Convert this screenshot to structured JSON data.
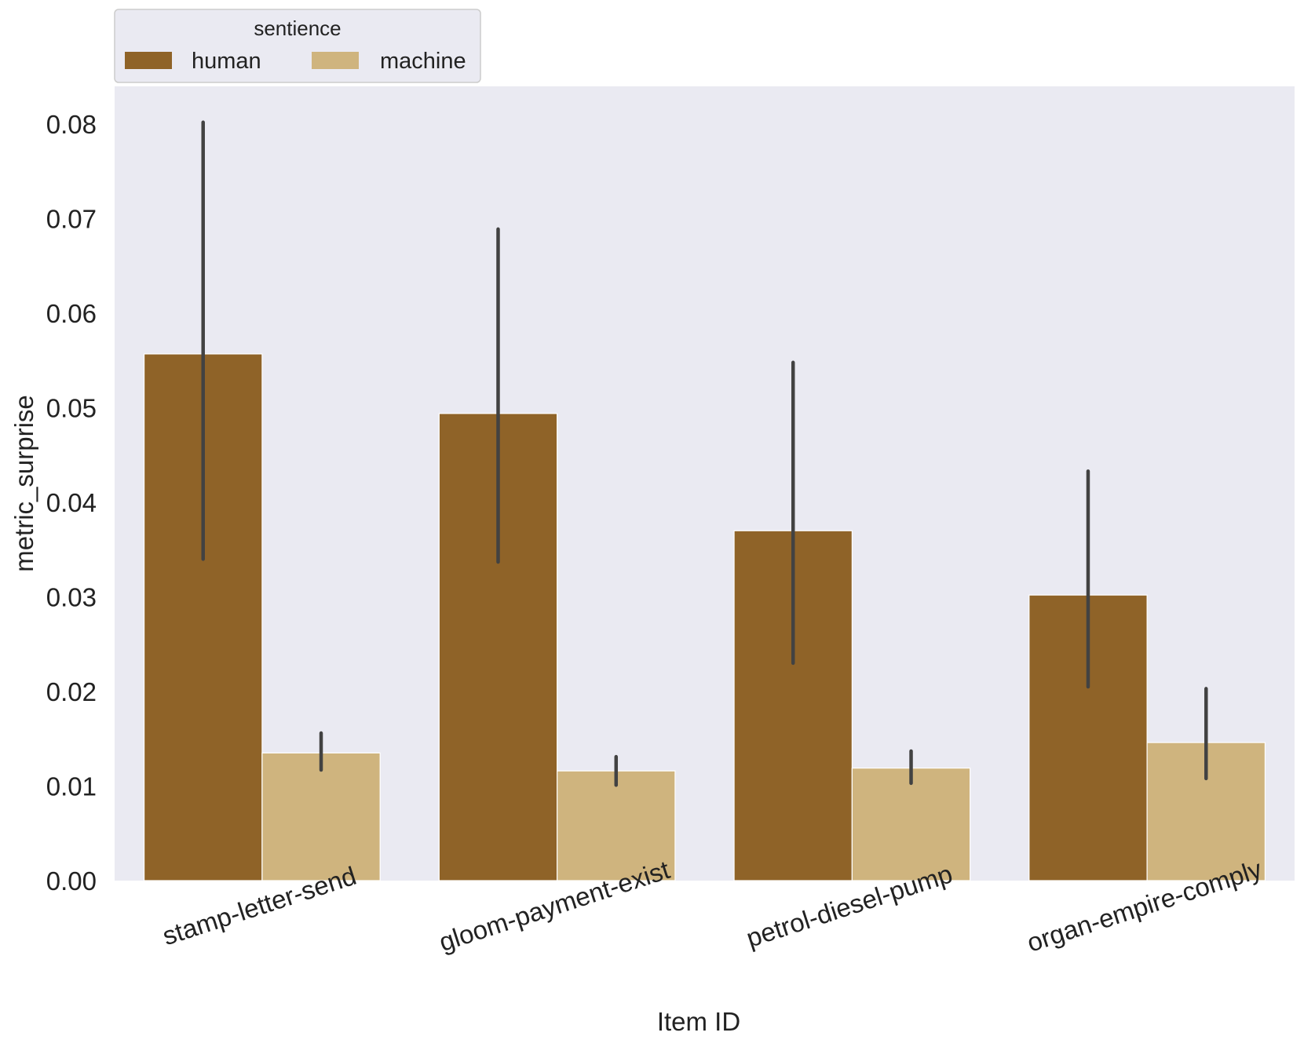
{
  "chart_data": {
    "type": "bar",
    "title": "",
    "xlabel": "Item ID",
    "ylabel": "metric_surprise",
    "categories": [
      "stamp-letter-send",
      "gloom-payment-exist",
      "petrol-diesel-pump",
      "organ-empire-comply"
    ],
    "series": [
      {
        "name": "human",
        "color": "#8f6328",
        "values": [
          0.0557,
          0.0494,
          0.037,
          0.0302
        ],
        "ci_low": [
          0.034,
          0.0337,
          0.023,
          0.0205
        ],
        "ci_high": [
          0.0802,
          0.0689,
          0.0548,
          0.0433
        ]
      },
      {
        "name": "machine",
        "color": "#cfb47e",
        "values": [
          0.0135,
          0.0116,
          0.0119,
          0.0146
        ],
        "ci_low": [
          0.0117,
          0.0101,
          0.0103,
          0.0108
        ],
        "ci_high": [
          0.0156,
          0.0131,
          0.0137,
          0.0203
        ]
      }
    ],
    "ylim": [
      0,
      0.084
    ],
    "yticks": [
      "0.00",
      "0.01",
      "0.02",
      "0.03",
      "0.04",
      "0.05",
      "0.06",
      "0.07",
      "0.08"
    ],
    "grid": false,
    "legend": {
      "title": "sentience",
      "placement": "top-left outside",
      "ncol": 2
    },
    "background": "#eaeaf2",
    "errorbar_color": "#424242"
  }
}
